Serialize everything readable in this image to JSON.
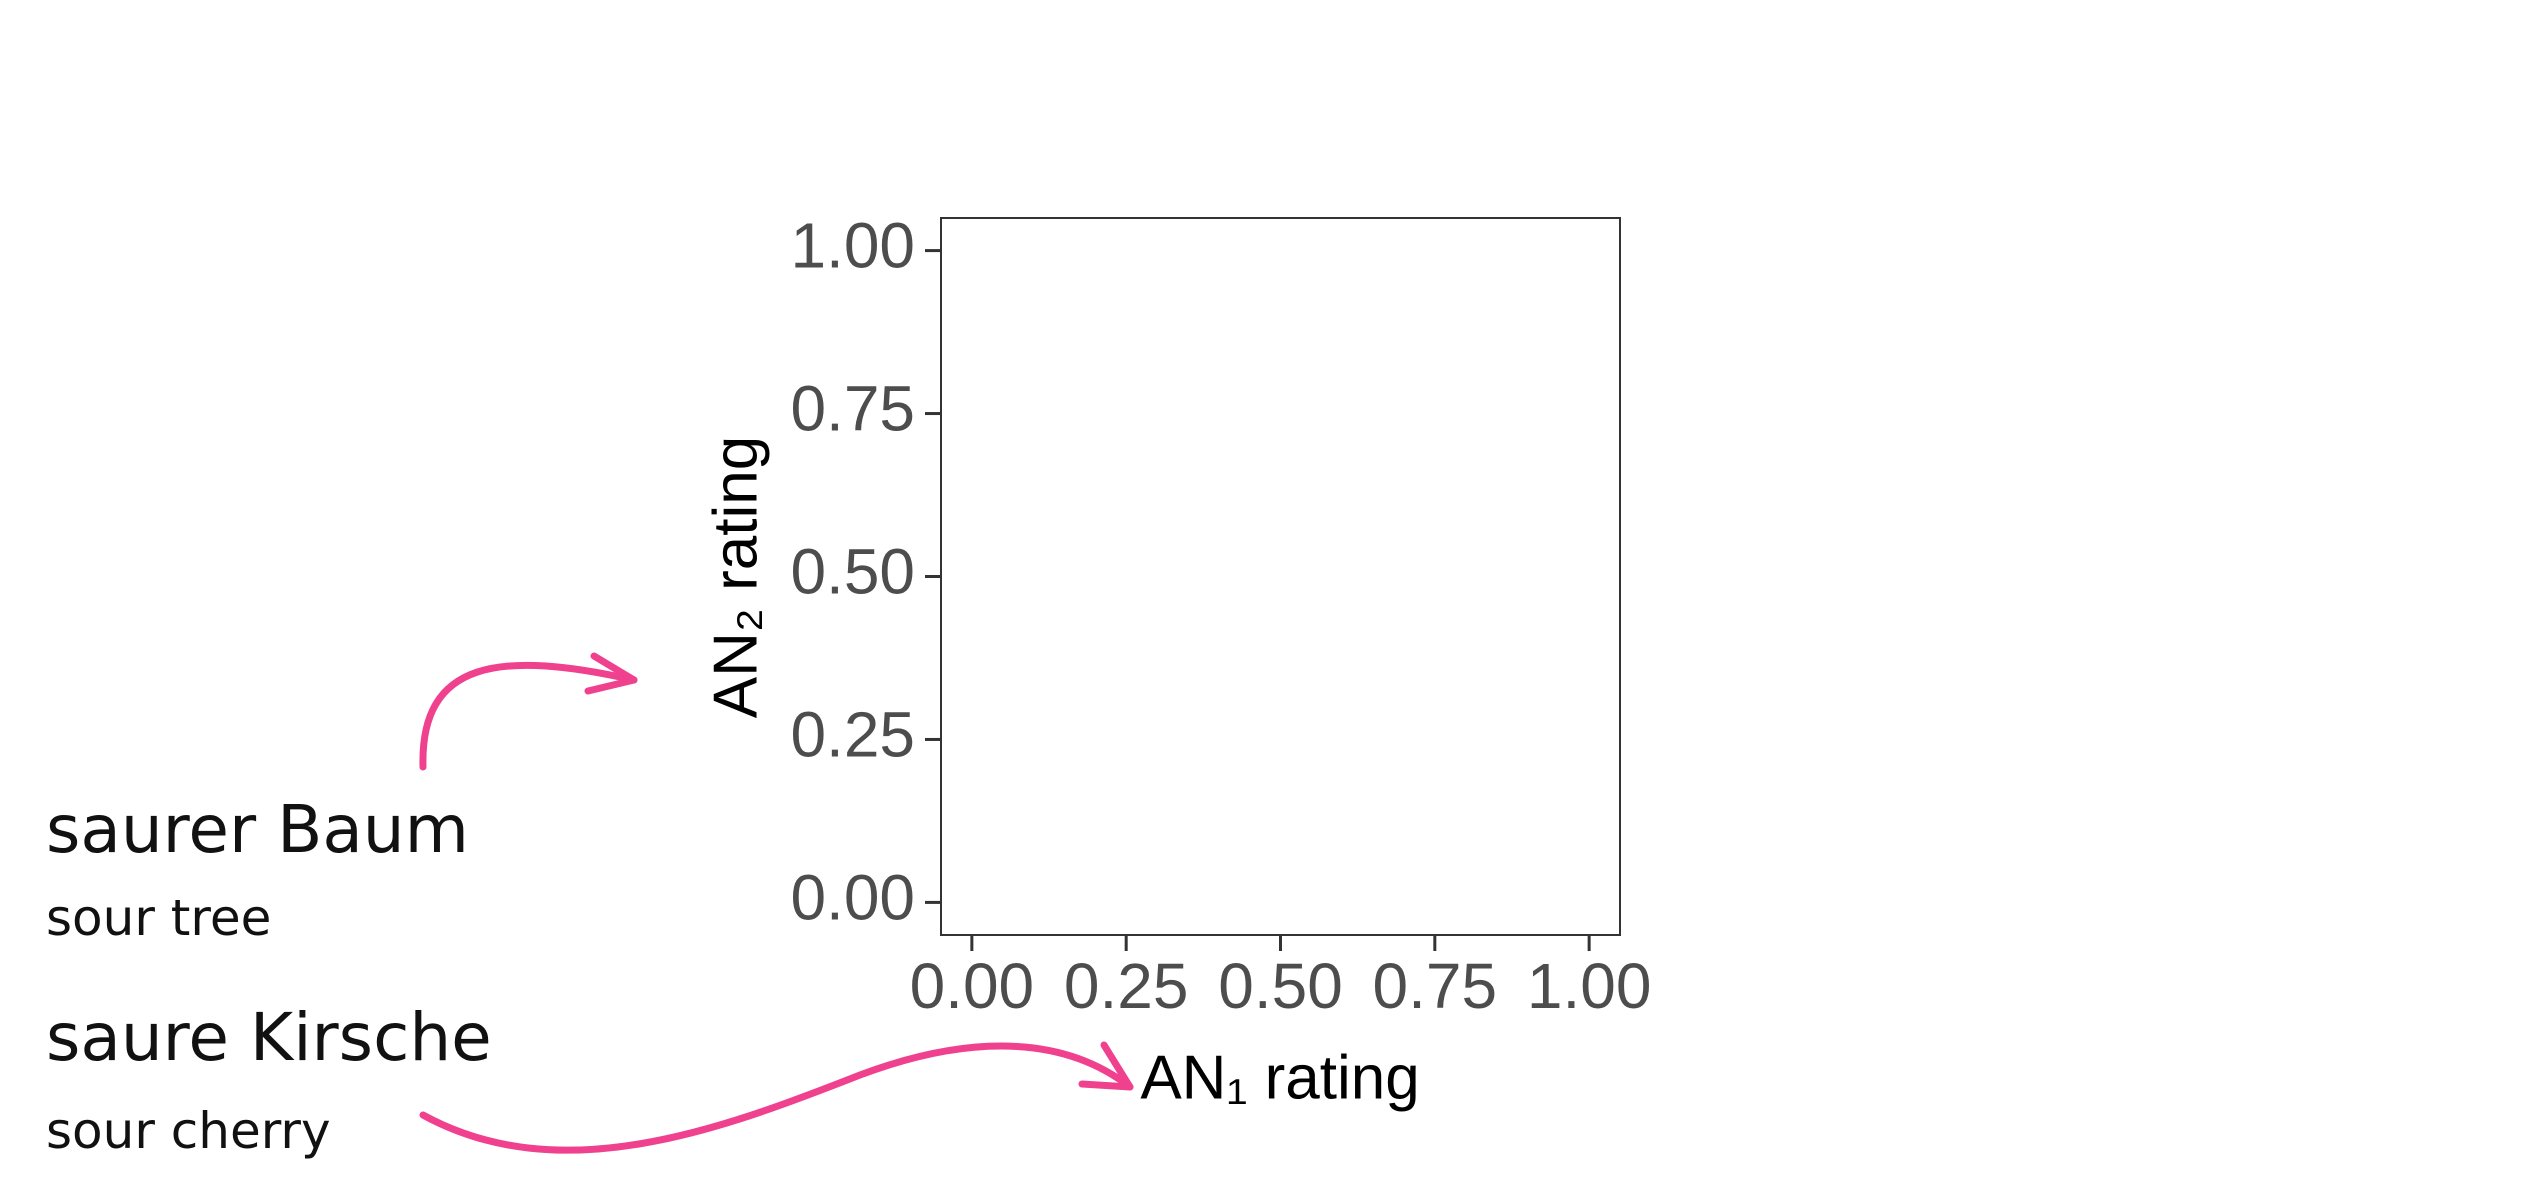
{
  "chart_data": {
    "type": "scatter",
    "xlabel": "AN₁ rating",
    "ylabel": "AN₂ rating",
    "xlim": [
      -0.05,
      1.05
    ],
    "ylim": [
      -0.05,
      1.05
    ],
    "xticks": [
      {
        "value": 0,
        "label": "0.00"
      },
      {
        "value": 0.25,
        "label": "0.25"
      },
      {
        "value": 0.5,
        "label": "0.50"
      },
      {
        "value": 0.75,
        "label": "0.75"
      },
      {
        "value": 1,
        "label": "1.00"
      }
    ],
    "yticks": [
      {
        "value": 0,
        "label": "0.00"
      },
      {
        "value": 0.25,
        "label": "0.25"
      },
      {
        "value": 0.5,
        "label": "0.50"
      },
      {
        "value": 0.75,
        "label": "0.75"
      },
      {
        "value": 1,
        "label": "1.00"
      }
    ],
    "annotations": [
      {
        "text": "saurer Baum",
        "translation": "sour tree"
      },
      {
        "text": "saure Kirsche",
        "translation": "sour cherry"
      }
    ]
  }
}
